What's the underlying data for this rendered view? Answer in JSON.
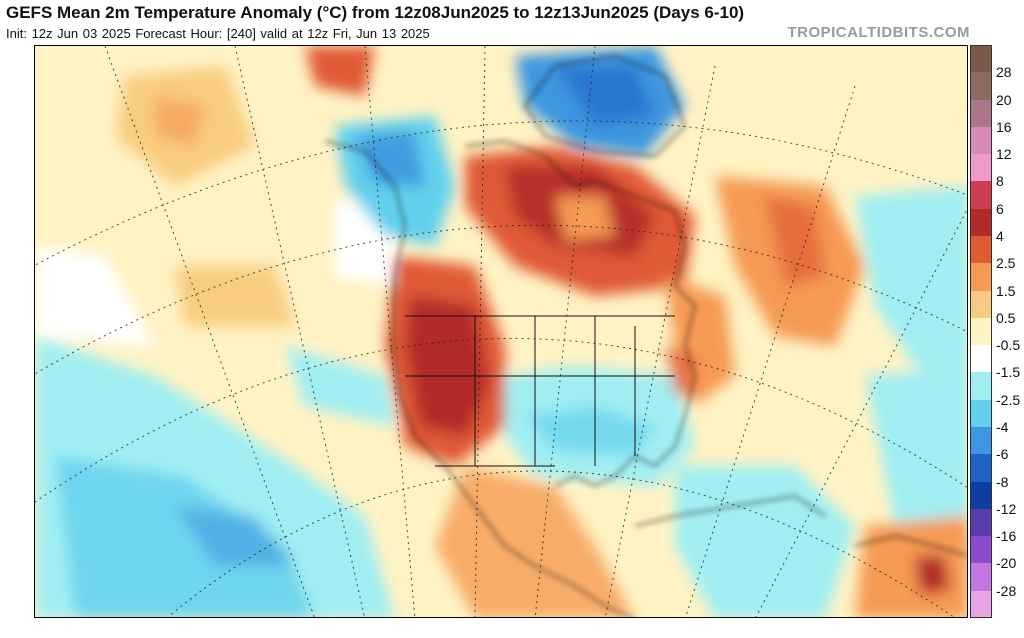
{
  "header": {
    "title": "GEFS Mean 2m Temperature Anomaly (°C) from 12z08Jun2025 to 12z13Jun2025 (Days 6-10)",
    "subtitle": "Init: 12z Jun 03 2025   Forecast Hour: [240]   valid at 12z Fri, Jun 13 2025",
    "credit": "TROPICALTIDBITS.COM"
  },
  "colorbar": {
    "bins": [
      {
        "color": "#7a5a4a",
        "label": "28"
      },
      {
        "color": "#8c6a5e",
        "label": "20"
      },
      {
        "color": "#a8788a",
        "label": "16"
      },
      {
        "color": "#d88cb4",
        "label": "12"
      },
      {
        "color": "#f29ac6",
        "label": "8"
      },
      {
        "color": "#cc3c52",
        "label": "6"
      },
      {
        "color": "#b22a2a",
        "label": "4"
      },
      {
        "color": "#e05a35",
        "label": "2.5"
      },
      {
        "color": "#f59a52",
        "label": "1.5"
      },
      {
        "color": "#f8cc80",
        "label": "0.5"
      },
      {
        "color": "#fff3c4",
        "label": "-0.5"
      },
      {
        "color": "#ffffff",
        "label": "-1.5"
      },
      {
        "color": "#a0eef2",
        "label": "-2.5"
      },
      {
        "color": "#62d0ec",
        "label": "-4"
      },
      {
        "color": "#3d96df",
        "label": "-6"
      },
      {
        "color": "#2063c8",
        "label": "-8"
      },
      {
        "color": "#0f3ea2",
        "label": "-12"
      },
      {
        "color": "#5a3caa",
        "label": "-16"
      },
      {
        "color": "#8a4ccc",
        "label": "-20"
      },
      {
        "color": "#c277de",
        "label": "-28"
      },
      {
        "color": "#e6a4e6",
        "label": ""
      }
    ]
  }
}
